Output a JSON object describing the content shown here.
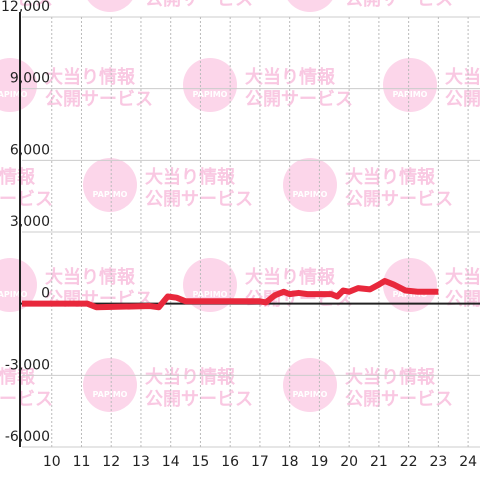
{
  "chart_data": {
    "type": "line",
    "watermark": {
      "logo": "PAPIMO",
      "line1": "大当り情報",
      "line2": "公開サービス"
    },
    "x": [
      9,
      11.2,
      11.5,
      13.3,
      13.6,
      13.9,
      14.2,
      14.5,
      17.0,
      17.2,
      17.5,
      17.8,
      18.0,
      18.3,
      18.6,
      19.4,
      19.6,
      19.8,
      20.0,
      20.3,
      20.7,
      21.0,
      21.2,
      21.5,
      21.9,
      22.3,
      23.0
    ],
    "series": [
      {
        "color": "#e8283c",
        "values": [
          0,
          0,
          -150,
          -100,
          -150,
          300,
          250,
          100,
          100,
          50,
          350,
          500,
          400,
          450,
          400,
          400,
          300,
          550,
          500,
          650,
          600,
          800,
          950,
          800,
          550,
          500,
          500
        ]
      }
    ],
    "xlim": [
      9,
      24.4
    ],
    "xticks": [
      10,
      11,
      12,
      13,
      14,
      15,
      16,
      17,
      18,
      19,
      20,
      21,
      22,
      23,
      24
    ],
    "ylim": [
      -6000,
      12000
    ],
    "yticks": [
      {
        "value": 12000,
        "label": "12,000"
      },
      {
        "value": 9000,
        "label": "9,000"
      },
      {
        "value": 6000,
        "label": "6,000"
      },
      {
        "value": 3000,
        "label": "3,000"
      },
      0,
      {
        "value": -3000,
        "label": "-3,000"
      },
      {
        "value": -6000,
        "label": "-6,000"
      }
    ],
    "grid": true
  }
}
